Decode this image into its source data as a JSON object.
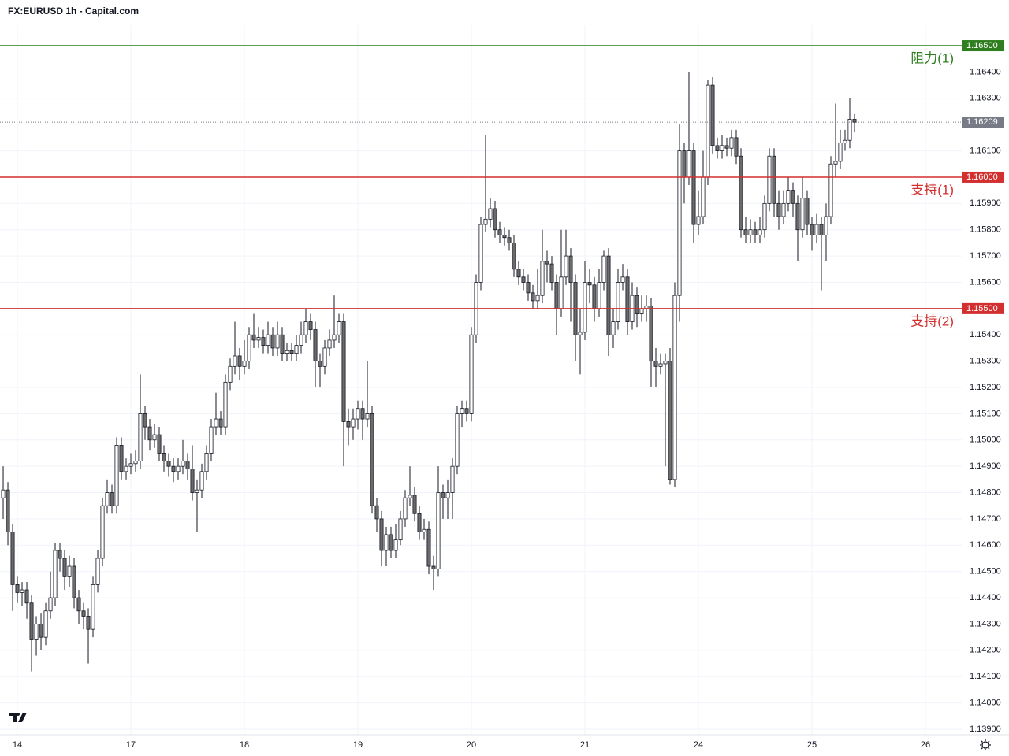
{
  "chart_data": {
    "type": "candlestick",
    "title": "FX:EURUSD 1h - Capital.com",
    "open": [
      1.1478,
      1.1481,
      1.1465,
      1.1445,
      1.1442,
      1.1443,
      1.1438,
      1.1424,
      1.143,
      1.1425,
      1.1435,
      1.144,
      1.1458,
      1.1455,
      1.1448,
      1.1452,
      1.144,
      1.1435,
      1.1433,
      1.1428,
      1.1445,
      1.1455,
      1.1475,
      1.148,
      1.1475,
      1.1498,
      1.1488,
      1.149,
      1.1491,
      1.1492,
      1.151,
      1.1505,
      1.15,
      1.1502,
      1.1495,
      1.1492,
      1.149,
      1.1488,
      1.149,
      1.1492,
      1.1489,
      1.148,
      1.1481,
      1.1488,
      1.1495,
      1.1505,
      1.1508,
      1.1505,
      1.1522,
      1.1528,
      1.1532,
      1.1528,
      1.153,
      1.154,
      1.1538,
      1.1539,
      1.1536,
      1.154,
      1.1535,
      1.154,
      1.1533,
      1.1534,
      1.1533,
      1.1536,
      1.154,
      1.1545,
      1.1542,
      1.153,
      1.1528,
      1.1535,
      1.1538,
      1.154,
      1.1545,
      1.1507,
      1.1505,
      1.1508,
      1.1512,
      1.1508,
      1.151,
      1.1475,
      1.147,
      1.1458,
      1.1464,
      1.1458,
      1.1462,
      1.147,
      1.1478,
      1.1479,
      1.1472,
      1.1465,
      1.1466,
      1.1452,
      1.1451,
      1.148,
      1.1478,
      1.148,
      1.149,
      1.151,
      1.1512,
      1.151,
      1.154,
      1.156,
      1.1582,
      1.1584,
      1.1588,
      1.158,
      1.1578,
      1.1577,
      1.1575,
      1.1565,
      1.1562,
      1.156,
      1.1556,
      1.1553,
      1.1555,
      1.1568,
      1.1567,
      1.156,
      1.155,
      1.1562,
      1.157,
      1.156,
      1.154,
      1.1541,
      1.156,
      1.1559,
      1.155,
      1.156,
      1.157,
      1.154,
      1.1545,
      1.156,
      1.1562,
      1.1545,
      1.1555,
      1.1548,
      1.155,
      1.1551,
      1.153,
      1.1528,
      1.1529,
      1.153,
      1.1485,
      1.1555,
      1.161,
      1.16,
      1.161,
      1.1582,
      1.1585,
      1.16,
      1.1635,
      1.1612,
      1.161,
      1.1612,
      1.1611,
      1.1615,
      1.1608,
      1.158,
      1.1578,
      1.158,
      1.1578,
      1.158,
      1.159,
      1.1608,
      1.159,
      1.1585,
      1.159,
      1.1595,
      1.159,
      1.158,
      1.1592,
      1.1582,
      1.1578,
      1.1582,
      1.1578,
      1.1585,
      1.1605,
      1.1606,
      1.1613,
      1.1614,
      1.1622
    ],
    "high": [
      1.149,
      1.1484,
      1.1468,
      1.1448,
      1.1446,
      1.1446,
      1.1441,
      1.1433,
      1.1434,
      1.1438,
      1.145,
      1.1461,
      1.1461,
      1.1458,
      1.1456,
      1.1455,
      1.1443,
      1.1438,
      1.1436,
      1.1448,
      1.1458,
      1.1478,
      1.1485,
      1.1483,
      1.1501,
      1.1501,
      1.1493,
      1.1495,
      1.1496,
      1.1525,
      1.1513,
      1.1508,
      1.1506,
      1.1505,
      1.1498,
      1.1495,
      1.1493,
      1.1493,
      1.15,
      1.1495,
      1.1498,
      1.1485,
      1.1491,
      1.1498,
      1.1508,
      1.1518,
      1.1511,
      1.1525,
      1.1531,
      1.1545,
      1.1535,
      1.1538,
      1.1543,
      1.1548,
      1.1543,
      1.1542,
      1.1545,
      1.1543,
      1.1545,
      1.1543,
      1.1537,
      1.1537,
      1.154,
      1.1545,
      1.155,
      1.1548,
      1.1545,
      1.1533,
      1.1538,
      1.1542,
      1.1555,
      1.1548,
      1.1548,
      1.1512,
      1.1512,
      1.1515,
      1.1515,
      1.153,
      1.1513,
      1.1478,
      1.1473,
      1.1467,
      1.1467,
      1.1468,
      1.1473,
      1.1481,
      1.149,
      1.1482,
      1.1475,
      1.147,
      1.1469,
      1.1456,
      1.149,
      1.1483,
      1.1485,
      1.1493,
      1.1513,
      1.1515,
      1.1515,
      1.1543,
      1.1563,
      1.1585,
      1.1616,
      1.1592,
      1.1591,
      1.1583,
      1.1581,
      1.158,
      1.1578,
      1.1568,
      1.1565,
      1.1563,
      1.1559,
      1.1565,
      1.158,
      1.1572,
      1.157,
      1.1563,
      1.158,
      1.158,
      1.1573,
      1.1563,
      1.155,
      1.1568,
      1.1565,
      1.1562,
      1.1565,
      1.1572,
      1.1573,
      1.155,
      1.1565,
      1.1567,
      1.1565,
      1.156,
      1.1558,
      1.1555,
      1.1555,
      1.1554,
      1.1535,
      1.1533,
      1.1533,
      1.1535,
      1.156,
      1.162,
      1.1613,
      1.164,
      1.1613,
      1.1595,
      1.161,
      1.1637,
      1.1638,
      1.1615,
      1.1616,
      1.1615,
      1.1618,
      1.1618,
      1.1611,
      1.1585,
      1.1584,
      1.1583,
      1.1585,
      1.1593,
      1.1611,
      1.1611,
      1.1595,
      1.1595,
      1.16,
      1.1598,
      1.1593,
      1.16,
      1.1595,
      1.1585,
      1.1586,
      1.1585,
      1.159,
      1.1608,
      1.1628,
      1.1618,
      1.1618,
      1.163,
      1.1624
    ],
    "low": [
      1.147,
      1.146,
      1.1435,
      1.1438,
      1.1437,
      1.1432,
      1.1412,
      1.1418,
      1.142,
      1.1422,
      1.1432,
      1.1437,
      1.145,
      1.1443,
      1.1444,
      1.1436,
      1.143,
      1.1428,
      1.1415,
      1.1425,
      1.1442,
      1.1452,
      1.1472,
      1.1472,
      1.1472,
      1.1485,
      1.1485,
      1.1487,
      1.1488,
      1.1489,
      1.15,
      1.1496,
      1.1497,
      1.1492,
      1.1488,
      1.1486,
      1.1484,
      1.1485,
      1.1487,
      1.1485,
      1.1477,
      1.1465,
      1.1478,
      1.1485,
      1.1492,
      1.1502,
      1.1502,
      1.1502,
      1.1519,
      1.1525,
      1.1523,
      1.1525,
      1.1527,
      1.1535,
      1.1535,
      1.1533,
      1.1533,
      1.1532,
      1.1532,
      1.153,
      1.153,
      1.153,
      1.153,
      1.1533,
      1.1537,
      1.1538,
      1.152,
      1.152,
      1.1525,
      1.1532,
      1.1535,
      1.1537,
      1.149,
      1.1498,
      1.15,
      1.1504,
      1.15,
      1.1505,
      1.1472,
      1.1465,
      1.1452,
      1.1452,
      1.1455,
      1.1455,
      1.146,
      1.1467,
      1.1475,
      1.1469,
      1.1462,
      1.1462,
      1.1449,
      1.1443,
      1.1448,
      1.147,
      1.147,
      1.147,
      1.1487,
      1.1505,
      1.1507,
      1.1507,
      1.1537,
      1.1557,
      1.1579,
      1.1581,
      1.1577,
      1.1575,
      1.1574,
      1.1572,
      1.1562,
      1.1559,
      1.1557,
      1.1553,
      1.155,
      1.155,
      1.1552,
      1.156,
      1.1557,
      1.154,
      1.1547,
      1.1559,
      1.1545,
      1.153,
      1.1525,
      1.1538,
      1.1552,
      1.1545,
      1.1547,
      1.1557,
      1.1532,
      1.1535,
      1.1542,
      1.1557,
      1.154,
      1.1542,
      1.1543,
      1.1545,
      1.1545,
      1.152,
      1.152,
      1.1525,
      1.149,
      1.1483,
      1.1482,
      1.1545,
      1.159,
      1.1597,
      1.1575,
      1.1578,
      1.1582,
      1.1597,
      1.1609,
      1.1607,
      1.1607,
      1.1608,
      1.1608,
      1.1605,
      1.1577,
      1.1575,
      1.1575,
      1.1575,
      1.1575,
      1.1577,
      1.1587,
      1.1585,
      1.158,
      1.1582,
      1.1587,
      1.1585,
      1.1568,
      1.1577,
      1.1578,
      1.1572,
      1.1575,
      1.1557,
      1.1568,
      1.1582,
      1.16,
      1.1603,
      1.161,
      1.1611,
      1.1617
    ],
    "close": [
      1.1481,
      1.1465,
      1.1445,
      1.1442,
      1.1443,
      1.1438,
      1.1424,
      1.143,
      1.1425,
      1.1435,
      1.144,
      1.1458,
      1.1455,
      1.1448,
      1.1452,
      1.144,
      1.1435,
      1.1433,
      1.1428,
      1.1445,
      1.1455,
      1.1475,
      1.148,
      1.1475,
      1.1498,
      1.1488,
      1.149,
      1.1491,
      1.1492,
      1.151,
      1.1505,
      1.15,
      1.1502,
      1.1495,
      1.1492,
      1.149,
      1.1488,
      1.149,
      1.1492,
      1.1489,
      1.148,
      1.1481,
      1.1488,
      1.1495,
      1.1505,
      1.1508,
      1.1505,
      1.1522,
      1.1528,
      1.1532,
      1.1528,
      1.153,
      1.154,
      1.1538,
      1.1539,
      1.1536,
      1.154,
      1.1535,
      1.154,
      1.1533,
      1.1534,
      1.1533,
      1.1536,
      1.154,
      1.1545,
      1.1542,
      1.153,
      1.1528,
      1.1535,
      1.1538,
      1.154,
      1.1545,
      1.1507,
      1.1505,
      1.1508,
      1.1512,
      1.1508,
      1.151,
      1.1475,
      1.147,
      1.1458,
      1.1464,
      1.1458,
      1.1462,
      1.147,
      1.1478,
      1.1479,
      1.1472,
      1.1465,
      1.1466,
      1.1452,
      1.1451,
      1.148,
      1.1478,
      1.148,
      1.149,
      1.151,
      1.1512,
      1.151,
      1.154,
      1.156,
      1.1582,
      1.1584,
      1.1588,
      1.158,
      1.1578,
      1.1577,
      1.1575,
      1.1565,
      1.1562,
      1.156,
      1.1556,
      1.1553,
      1.1555,
      1.1568,
      1.1567,
      1.156,
      1.155,
      1.1562,
      1.157,
      1.156,
      1.154,
      1.1541,
      1.156,
      1.1559,
      1.155,
      1.156,
      1.157,
      1.154,
      1.1545,
      1.156,
      1.1562,
      1.1545,
      1.1555,
      1.1548,
      1.155,
      1.1551,
      1.153,
      1.1528,
      1.1529,
      1.153,
      1.1485,
      1.1555,
      1.161,
      1.16,
      1.161,
      1.1582,
      1.1585,
      1.16,
      1.1635,
      1.1612,
      1.161,
      1.1612,
      1.1611,
      1.1615,
      1.1608,
      1.158,
      1.1578,
      1.158,
      1.1578,
      1.158,
      1.159,
      1.1608,
      1.159,
      1.1585,
      1.159,
      1.1595,
      1.159,
      1.158,
      1.1592,
      1.1582,
      1.1578,
      1.1582,
      1.1578,
      1.1585,
      1.1605,
      1.1606,
      1.1613,
      1.1614,
      1.1622,
      1.16209
    ],
    "up_color": "#ffffff",
    "down_color": "#6b6b6b",
    "wick_color": "#131722",
    "xlim": [
      -0.67,
      202.67
    ],
    "xticks": [
      {
        "value": 3,
        "label": "14"
      },
      {
        "value": 27,
        "label": "17"
      },
      {
        "value": 51,
        "label": "18"
      },
      {
        "value": 75,
        "label": "19"
      },
      {
        "value": 99,
        "label": "20"
      },
      {
        "value": 123,
        "label": "21"
      },
      {
        "value": 147,
        "label": "24"
      },
      {
        "value": 171,
        "label": "25"
      },
      {
        "value": 195,
        "label": "26"
      }
    ],
    "ylim": [
      1.13879,
      1.16578
    ],
    "yticks": [
      {
        "value": 1.139,
        "label": "1.13900"
      },
      {
        "value": 1.14,
        "label": "1.14000"
      },
      {
        "value": 1.141,
        "label": "1.14100"
      },
      {
        "value": 1.142,
        "label": "1.14200"
      },
      {
        "value": 1.143,
        "label": "1.14300"
      },
      {
        "value": 1.144,
        "label": "1.14400"
      },
      {
        "value": 1.145,
        "label": "1.14500"
      },
      {
        "value": 1.146,
        "label": "1.14600"
      },
      {
        "value": 1.147,
        "label": "1.14700"
      },
      {
        "value": 1.148,
        "label": "1.14800"
      },
      {
        "value": 1.149,
        "label": "1.14900"
      },
      {
        "value": 1.15,
        "label": "1.15000"
      },
      {
        "value": 1.151,
        "label": "1.15100"
      },
      {
        "value": 1.152,
        "label": "1.15200"
      },
      {
        "value": 1.153,
        "label": "1.15300"
      },
      {
        "value": 1.154,
        "label": "1.15400"
      },
      {
        "value": 1.156,
        "label": "1.15600"
      },
      {
        "value": 1.157,
        "label": "1.15700"
      },
      {
        "value": 1.158,
        "label": "1.15800"
      },
      {
        "value": 1.159,
        "label": "1.15900"
      },
      {
        "value": 1.161,
        "label": "1.16100"
      },
      {
        "value": 1.163,
        "label": "1.16300"
      },
      {
        "value": 1.164,
        "label": "1.16400"
      }
    ],
    "grid": true,
    "levels": [
      {
        "value": 1.165,
        "label": "1.16500",
        "annotation": "阻力(1)",
        "color": "#2e7d1e"
      },
      {
        "value": 1.16,
        "label": "1.16000",
        "annotation": "支持(1)",
        "color": "#d32f2f"
      },
      {
        "value": 1.155,
        "label": "1.15500",
        "annotation": "支持(2)",
        "color": "#d32f2f"
      }
    ],
    "last_price": {
      "value": 1.16209,
      "label": "1.16209",
      "color": "#787b86"
    }
  }
}
